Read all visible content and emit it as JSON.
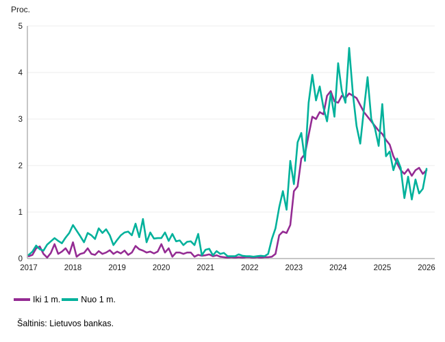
{
  "unit_label": "Proc.",
  "source": "Šaltinis: Lietuvos bankas.",
  "legend": {
    "items": [
      {
        "label": "Iki 1 m.",
        "color": "#942b93"
      },
      {
        "label": "Nuo 1 m.",
        "color": "#00b19b"
      }
    ]
  },
  "chart_data": {
    "type": "line",
    "title": "",
    "ylabel": "Proc.",
    "xlabel": "",
    "ylim": [
      0,
      5
    ],
    "yticks": [
      0,
      1,
      2,
      3,
      4,
      5
    ],
    "xticks": [
      2017,
      2018,
      2019,
      2020,
      2021,
      2022,
      2023,
      2024,
      2025,
      2026
    ],
    "x_start": "2017-01",
    "x_step": "monthly",
    "grid": "horizontal-light",
    "legend_position": "bottom-left",
    "axis_color": "#8c8c8c",
    "gridline_color": "#ececec",
    "tick_label_color": "#1a1a1a",
    "series": [
      {
        "name": "Iki 1 m.",
        "color": "#942b93",
        "values": [
          0.05,
          0.08,
          0.22,
          0.26,
          0.1,
          0.02,
          0.12,
          0.31,
          0.1,
          0.15,
          0.22,
          0.1,
          0.35,
          0.04,
          0.1,
          0.12,
          0.22,
          0.1,
          0.08,
          0.16,
          0.1,
          0.13,
          0.18,
          0.1,
          0.15,
          0.11,
          0.17,
          0.08,
          0.13,
          0.27,
          0.2,
          0.17,
          0.13,
          0.15,
          0.11,
          0.15,
          0.31,
          0.13,
          0.22,
          0.04,
          0.13,
          0.13,
          0.1,
          0.13,
          0.13,
          0.04,
          0.08,
          0.06,
          0.07,
          0.09,
          0.05,
          0.07,
          0.04,
          0.03,
          0.02,
          0.03,
          0.02,
          0.03,
          0.02,
          0.03,
          0.03,
          0.02,
          0.03,
          0.02,
          0.03,
          0.03,
          0.04,
          0.1,
          0.5,
          0.58,
          0.55,
          0.72,
          1.45,
          1.55,
          2.15,
          2.25,
          2.65,
          3.05,
          3.0,
          3.15,
          3.1,
          3.5,
          3.6,
          3.38,
          3.35,
          3.5,
          3.45,
          3.55,
          3.5,
          3.45,
          3.3,
          3.15,
          3.05,
          2.95,
          2.85,
          2.75,
          2.68,
          2.55,
          2.45,
          2.2,
          2.05,
          1.9,
          1.82,
          1.92,
          1.78,
          1.9,
          1.95,
          1.82,
          1.9
        ]
      },
      {
        "name": "Nuo 1 m.",
        "color": "#00b19b",
        "values": [
          0.08,
          0.15,
          0.28,
          0.2,
          0.17,
          0.3,
          0.37,
          0.44,
          0.38,
          0.33,
          0.45,
          0.55,
          0.72,
          0.6,
          0.48,
          0.35,
          0.55,
          0.5,
          0.42,
          0.65,
          0.55,
          0.63,
          0.5,
          0.29,
          0.4,
          0.5,
          0.56,
          0.58,
          0.5,
          0.75,
          0.46,
          0.85,
          0.35,
          0.56,
          0.43,
          0.44,
          0.44,
          0.56,
          0.38,
          0.53,
          0.37,
          0.39,
          0.29,
          0.36,
          0.37,
          0.29,
          0.53,
          0.07,
          0.19,
          0.21,
          0.07,
          0.16,
          0.1,
          0.12,
          0.05,
          0.05,
          0.05,
          0.09,
          0.06,
          0.05,
          0.05,
          0.04,
          0.05,
          0.06,
          0.05,
          0.1,
          0.42,
          0.65,
          1.1,
          1.45,
          1.05,
          2.1,
          1.6,
          2.5,
          2.7,
          2.1,
          3.35,
          3.95,
          3.4,
          3.7,
          3.25,
          2.95,
          3.55,
          3.05,
          4.2,
          3.6,
          3.35,
          4.53,
          3.55,
          2.85,
          2.47,
          3.2,
          3.9,
          3.0,
          2.8,
          2.42,
          3.32,
          2.2,
          2.3,
          1.9,
          2.15,
          1.95,
          1.3,
          1.76,
          1.27,
          1.7,
          1.4,
          1.5,
          1.93
        ]
      }
    ]
  }
}
